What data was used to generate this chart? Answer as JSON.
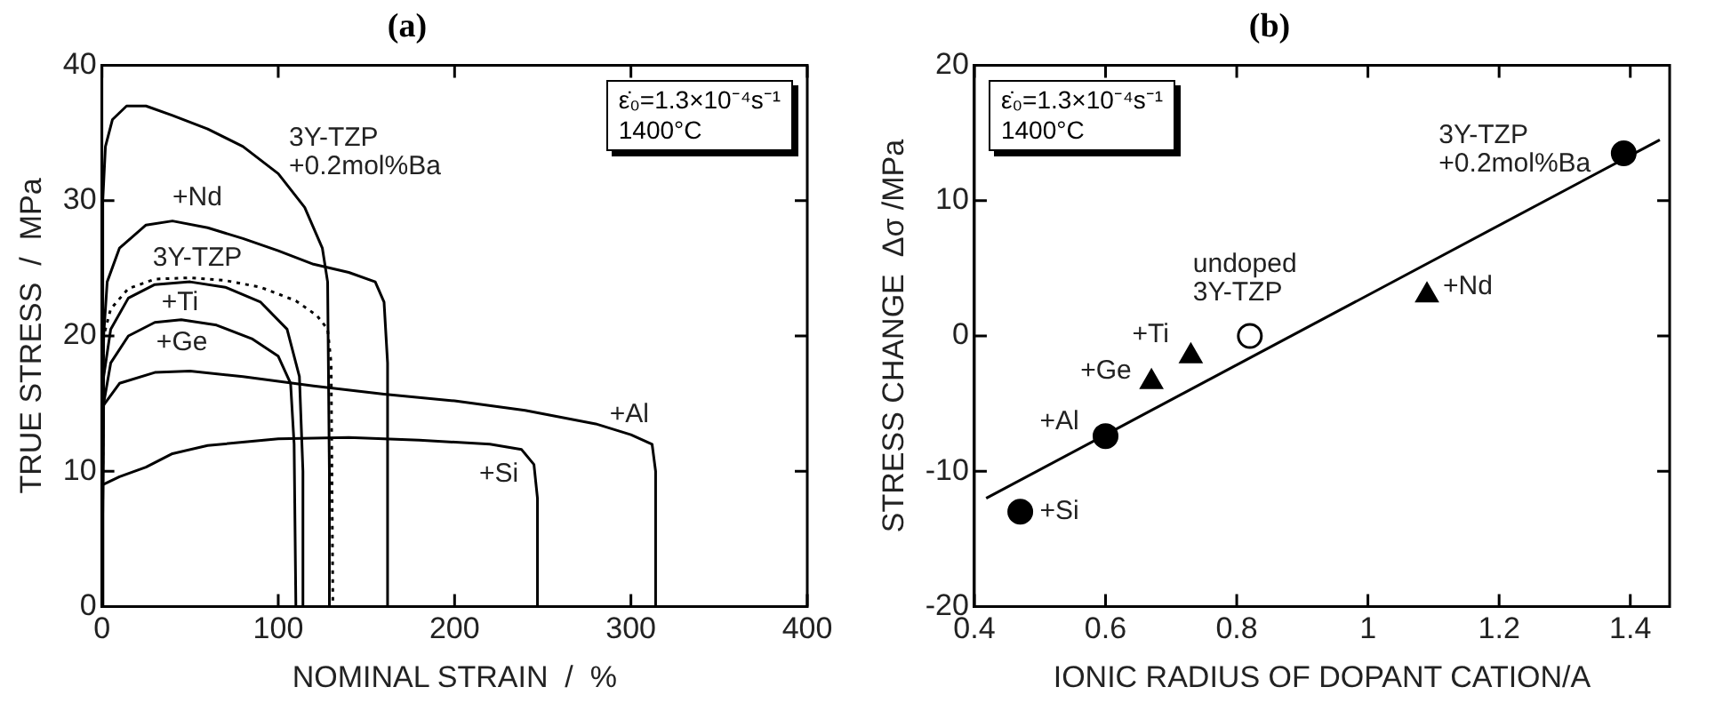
{
  "chart_data": [
    {
      "type": "line",
      "title": "(a)",
      "xlabel": "NOMINAL STRAIN  /  %",
      "ylabel": "TRUE STRESS  /  MPa",
      "xlim": [
        0,
        400
      ],
      "xticks": [
        0,
        100,
        200,
        300,
        400
      ],
      "ylim": [
        0,
        40
      ],
      "yticks": [
        0,
        10,
        20,
        30,
        40
      ],
      "marker": "none",
      "grid": false,
      "legend": false,
      "series": [
        {
          "name": "3Y-TZP\n+0.2mol%Ba",
          "color": "#000000",
          "line_style": "solid",
          "x": [
            0,
            0.5,
            2,
            6,
            14,
            25,
            40,
            60,
            80,
            100,
            115,
            125,
            128,
            129,
            129
          ],
          "values": [
            0,
            30,
            34,
            36,
            37,
            37,
            36.3,
            35.3,
            34,
            32,
            29.5,
            26.5,
            24,
            10,
            0
          ]
        },
        {
          "name": "+Nd",
          "color": "#000000",
          "line_style": "solid",
          "x": [
            0,
            1,
            3,
            10,
            25,
            40,
            60,
            80,
            100,
            120,
            140,
            155,
            160,
            162,
            162
          ],
          "values": [
            0,
            20,
            24,
            26.5,
            28.2,
            28.5,
            28,
            27.2,
            26.3,
            25.3,
            24.7,
            24,
            22.5,
            18,
            0
          ]
        },
        {
          "name": "3Y-TZP",
          "color": "#000000",
          "line_style": "dotted",
          "x": [
            0,
            1,
            5,
            15,
            30,
            50,
            70,
            90,
            110,
            122,
            128,
            130,
            131
          ],
          "values": [
            0,
            20,
            22,
            23.5,
            24.2,
            24.3,
            24.1,
            23.6,
            22.6,
            21.5,
            20.5,
            18,
            0
          ]
        },
        {
          "name": "+Ti",
          "color": "#000000",
          "line_style": "solid",
          "x": [
            0,
            1,
            5,
            15,
            30,
            50,
            70,
            90,
            105,
            112,
            114,
            114
          ],
          "values": [
            0,
            17,
            20.5,
            22.8,
            23.8,
            24,
            23.6,
            22.5,
            20.5,
            17,
            10,
            0
          ]
        },
        {
          "name": "+Ge",
          "color": "#000000",
          "line_style": "solid",
          "x": [
            0,
            1,
            5,
            15,
            30,
            45,
            65,
            85,
            100,
            107,
            109,
            110
          ],
          "values": [
            0,
            15,
            18,
            20,
            21,
            21.2,
            20.8,
            19.8,
            18.5,
            16.5,
            12,
            0
          ]
        },
        {
          "name": "+Al",
          "color": "#000000",
          "line_style": "solid",
          "x": [
            0,
            0.5,
            10,
            30,
            50,
            80,
            120,
            160,
            200,
            240,
            280,
            300,
            312,
            314,
            314
          ],
          "values": [
            0,
            14.8,
            16.5,
            17.3,
            17.4,
            17,
            16.3,
            15.7,
            15.2,
            14.5,
            13.5,
            12.7,
            12,
            10,
            0
          ]
        },
        {
          "name": "+Si",
          "color": "#000000",
          "line_style": "solid",
          "x": [
            0,
            0.5,
            10,
            25,
            40,
            60,
            100,
            140,
            180,
            220,
            238,
            245,
            247,
            247
          ],
          "values": [
            0,
            9,
            9.6,
            10.3,
            11.3,
            11.9,
            12.4,
            12.5,
            12.3,
            12,
            11.6,
            10.5,
            8,
            0
          ]
        }
      ],
      "annotations": [
        "ε̇₀=1.3×10⁻⁴s⁻¹",
        "1400°C"
      ]
    },
    {
      "type": "scatter",
      "title": "(b)",
      "xlabel": "IONIC RADIUS OF DOPANT CATION/A",
      "ylabel": "STRESS CHANGE  Δσ /MPa",
      "xlim": [
        0.4,
        1.46
      ],
      "xticks": [
        0.4,
        0.6,
        0.8,
        1,
        1.2,
        1.4
      ],
      "ylim": [
        -20,
        20
      ],
      "yticks": [
        -20,
        -10,
        0,
        10,
        20
      ],
      "grid": false,
      "legend": false,
      "series": [
        {
          "name": "+Si",
          "color": "#000000",
          "marker": "circle",
          "x": [
            0.47
          ],
          "values": [
            -13
          ]
        },
        {
          "name": "+Al",
          "color": "#000000",
          "marker": "circle",
          "x": [
            0.6
          ],
          "values": [
            -7.4
          ]
        },
        {
          "name": "+Ge",
          "color": "#000000",
          "marker": "triangle",
          "x": [
            0.67
          ],
          "values": [
            -3.4
          ]
        },
        {
          "name": "+Ti",
          "color": "#000000",
          "marker": "triangle",
          "x": [
            0.73
          ],
          "values": [
            -1.5
          ]
        },
        {
          "name": "undoped\n3Y-TZP",
          "color": "#ffffff",
          "marker": "circle",
          "x": [
            0.82
          ],
          "values": [
            0
          ]
        },
        {
          "name": "+Nd",
          "color": "#000000",
          "marker": "triangle",
          "x": [
            1.09
          ],
          "values": [
            3
          ]
        },
        {
          "name": "3Y-TZP\n+0.2mol%Ba",
          "color": "#000000",
          "marker": "circle",
          "x": [
            1.39
          ],
          "values": [
            13.5
          ]
        },
        {
          "type": "line",
          "color": "#000000",
          "marker": "none",
          "line_style": "solid",
          "x": [
            0.418,
            1.445
          ],
          "values": [
            -12,
            14.5
          ]
        }
      ],
      "annotations": [
        "ε̇₀=1.3×10⁻⁴s⁻¹",
        "1400°C"
      ]
    }
  ]
}
